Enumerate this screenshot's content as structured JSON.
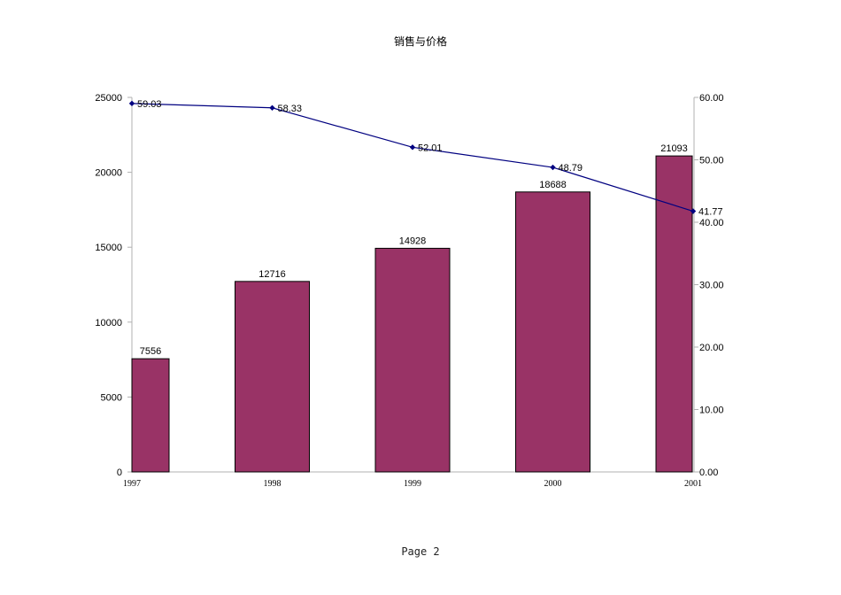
{
  "chart_data": {
    "type": "bar",
    "title": "销售与价格",
    "categories": [
      "1997",
      "1998",
      "1999",
      "2000",
      "2001"
    ],
    "series": [
      {
        "type": "bar",
        "axis": "left",
        "color": "#993366",
        "values": [
          7556,
          12716,
          14928,
          18688,
          21093
        ],
        "labels": [
          "7556",
          "12716",
          "14928",
          "18688",
          "21093"
        ]
      },
      {
        "type": "line",
        "axis": "right",
        "color": "#000080",
        "values": [
          59.03,
          58.33,
          52.01,
          48.79,
          41.77
        ],
        "labels": [
          "59.03",
          "58.33",
          "52.01",
          "48.79",
          "41.77"
        ]
      }
    ],
    "y_left": {
      "min": 0,
      "max": 25000,
      "ticks": [
        "0",
        "5000",
        "10000",
        "15000",
        "20000",
        "25000"
      ]
    },
    "y_right": {
      "min": 0,
      "max": 60,
      "ticks": [
        "0.00",
        "10.00",
        "20.00",
        "30.00",
        "40.00",
        "50.00",
        "60.00"
      ]
    },
    "grid": false,
    "legend": "none"
  },
  "footer": {
    "page_label": "Page 2"
  }
}
